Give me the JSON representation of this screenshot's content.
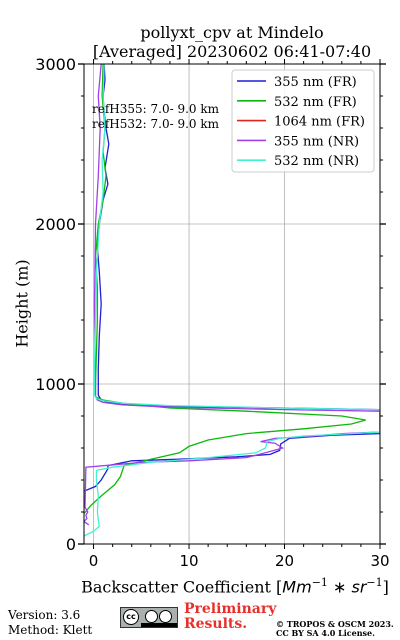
{
  "chart_data": {
    "type": "line",
    "title": "pollyxt_cpv at Mindelo",
    "subtitle": "[Averaged] 20230602 06:41-07:40",
    "xlabel_text": "Backscatter Coefficient [",
    "xlabel_math": "Mm",
    "xlabel_exp1": "−1",
    "xlabel_mid": " ∗ sr",
    "xlabel_exp2": "−1",
    "xlabel_end": "]",
    "ylabel": "Height (m)",
    "xlim": [
      -1,
      30
    ],
    "ylim": [
      0,
      3000
    ],
    "xticks": [
      0,
      10,
      20,
      30
    ],
    "yticks": [
      0,
      1000,
      2000,
      3000
    ],
    "grid": true,
    "legend_position": "top-right",
    "annotations": [
      "refH355:  7.0- 9.0 km",
      "refH532:  7.0- 9.0 km"
    ],
    "series": [
      {
        "name": "355 nm (FR)",
        "color": "#1f1fd6",
        "points": [
          [
            -1,
            330
          ],
          [
            0.2,
            360
          ],
          [
            0.8,
            400
          ],
          [
            1.5,
            470
          ],
          [
            1.5,
            490
          ],
          [
            4,
            520
          ],
          [
            9,
            530
          ],
          [
            15,
            545
          ],
          [
            18.5,
            560
          ],
          [
            19.5,
            585
          ],
          [
            19.6,
            625
          ],
          [
            20.5,
            660
          ],
          [
            25,
            680
          ],
          [
            30,
            690
          ],
          [
            30,
            840
          ],
          [
            20,
            850
          ],
          [
            8,
            860
          ],
          [
            4,
            870
          ],
          [
            1.5,
            885
          ],
          [
            0.8,
            900
          ],
          [
            0.5,
            930
          ],
          [
            0.5,
            1100
          ],
          [
            0.6,
            1300
          ],
          [
            0.8,
            1500
          ],
          [
            0.6,
            1700
          ],
          [
            0.4,
            1850
          ],
          [
            0.6,
            2000
          ],
          [
            1,
            2150
          ],
          [
            1.5,
            2250
          ],
          [
            1.2,
            2350
          ],
          [
            1.6,
            2500
          ],
          [
            1.3,
            2600
          ],
          [
            1.1,
            2700
          ],
          [
            1.0,
            2800
          ],
          [
            1.2,
            2900
          ],
          [
            1.1,
            3000
          ]
        ]
      },
      {
        "name": "532 nm (FR)",
        "color": "#0db80d",
        "points": [
          [
            -1,
            190
          ],
          [
            -0.3,
            240
          ],
          [
            0.8,
            300
          ],
          [
            2.2,
            370
          ],
          [
            2.8,
            420
          ],
          [
            3.2,
            490
          ],
          [
            6,
            530
          ],
          [
            9,
            570
          ],
          [
            10,
            610
          ],
          [
            12,
            650
          ],
          [
            16,
            690
          ],
          [
            22,
            720
          ],
          [
            27,
            750
          ],
          [
            28.5,
            775
          ],
          [
            26,
            800
          ],
          [
            16,
            830
          ],
          [
            8,
            850
          ],
          [
            3,
            880
          ],
          [
            1,
            900
          ],
          [
            0.2,
            920
          ],
          [
            0.2,
            1000
          ],
          [
            0.3,
            1200
          ],
          [
            0.4,
            1400
          ],
          [
            0.4,
            1600
          ],
          [
            0.2,
            1800
          ],
          [
            0.5,
            2000
          ],
          [
            1.0,
            2150
          ],
          [
            1.3,
            2300
          ],
          [
            1.0,
            2450
          ],
          [
            1.2,
            2600
          ],
          [
            0.9,
            2800
          ],
          [
            1.0,
            3000
          ]
        ]
      },
      {
        "name": "1064 nm (FR)",
        "color": "#e0241c",
        "points": []
      },
      {
        "name": "355 nm (NR)",
        "color": "#a040e8",
        "points": [
          [
            -0.5,
            120
          ],
          [
            -1,
            140
          ],
          [
            -0.7,
            160
          ],
          [
            -0.8,
            180
          ],
          [
            -0.6,
            200
          ],
          [
            -0.9,
            230
          ],
          [
            -0.8,
            480
          ],
          [
            5,
            510
          ],
          [
            10,
            520
          ],
          [
            16,
            540
          ],
          [
            18,
            570
          ],
          [
            19.8,
            600
          ],
          [
            19,
            630
          ],
          [
            17.5,
            640
          ],
          [
            19,
            660
          ],
          [
            22,
            670
          ],
          [
            26,
            690
          ],
          [
            30,
            700
          ],
          [
            30,
            830
          ],
          [
            20,
            840
          ],
          [
            8,
            855
          ],
          [
            3,
            870
          ],
          [
            1,
            885
          ],
          [
            0.4,
            900
          ],
          [
            0.2,
            920
          ],
          [
            0.2,
            1000
          ],
          [
            0.1,
            1500
          ],
          [
            0.2,
            2000
          ],
          [
            0.5,
            2300
          ],
          [
            0.7,
            2600
          ],
          [
            0.5,
            2800
          ],
          [
            0.8,
            3000
          ]
        ]
      },
      {
        "name": "532 nm (NR)",
        "color": "#41f2cf",
        "points": [
          [
            -1,
            50
          ],
          [
            0,
            80
          ],
          [
            0.6,
            110
          ],
          [
            0.5,
            150
          ],
          [
            0.4,
            200
          ],
          [
            0.5,
            300
          ],
          [
            0.3,
            400
          ],
          [
            0.3,
            460
          ],
          [
            2,
            480
          ],
          [
            6,
            510
          ],
          [
            12,
            540
          ],
          [
            17,
            570
          ],
          [
            18,
            600
          ],
          [
            18.2,
            640
          ],
          [
            19.5,
            660
          ],
          [
            22,
            675
          ],
          [
            27,
            690
          ],
          [
            30,
            700
          ],
          [
            30,
            840
          ],
          [
            20,
            850
          ],
          [
            8,
            865
          ],
          [
            3,
            880
          ],
          [
            1,
            895
          ],
          [
            0.3,
            910
          ],
          [
            0.1,
            930
          ],
          [
            0.1,
            1100
          ],
          [
            0.2,
            1400
          ],
          [
            0.3,
            1700
          ],
          [
            0.6,
            2000
          ],
          [
            1,
            2200
          ],
          [
            0.9,
            2400
          ],
          [
            1.2,
            2600
          ],
          [
            1.0,
            2800
          ],
          [
            1.1,
            3000
          ]
        ]
      }
    ]
  },
  "footer": {
    "version": "Version: 3.6",
    "method": "Method: Klett",
    "preliminary_line1": "Preliminary",
    "preliminary_line2": "Results.",
    "copyright_line1": "© TROPOS & OSCM 2023.",
    "copyright_line2": "CC BY SA 4.0 License.",
    "license_badge": "cc-by-sa-badge-icon"
  }
}
